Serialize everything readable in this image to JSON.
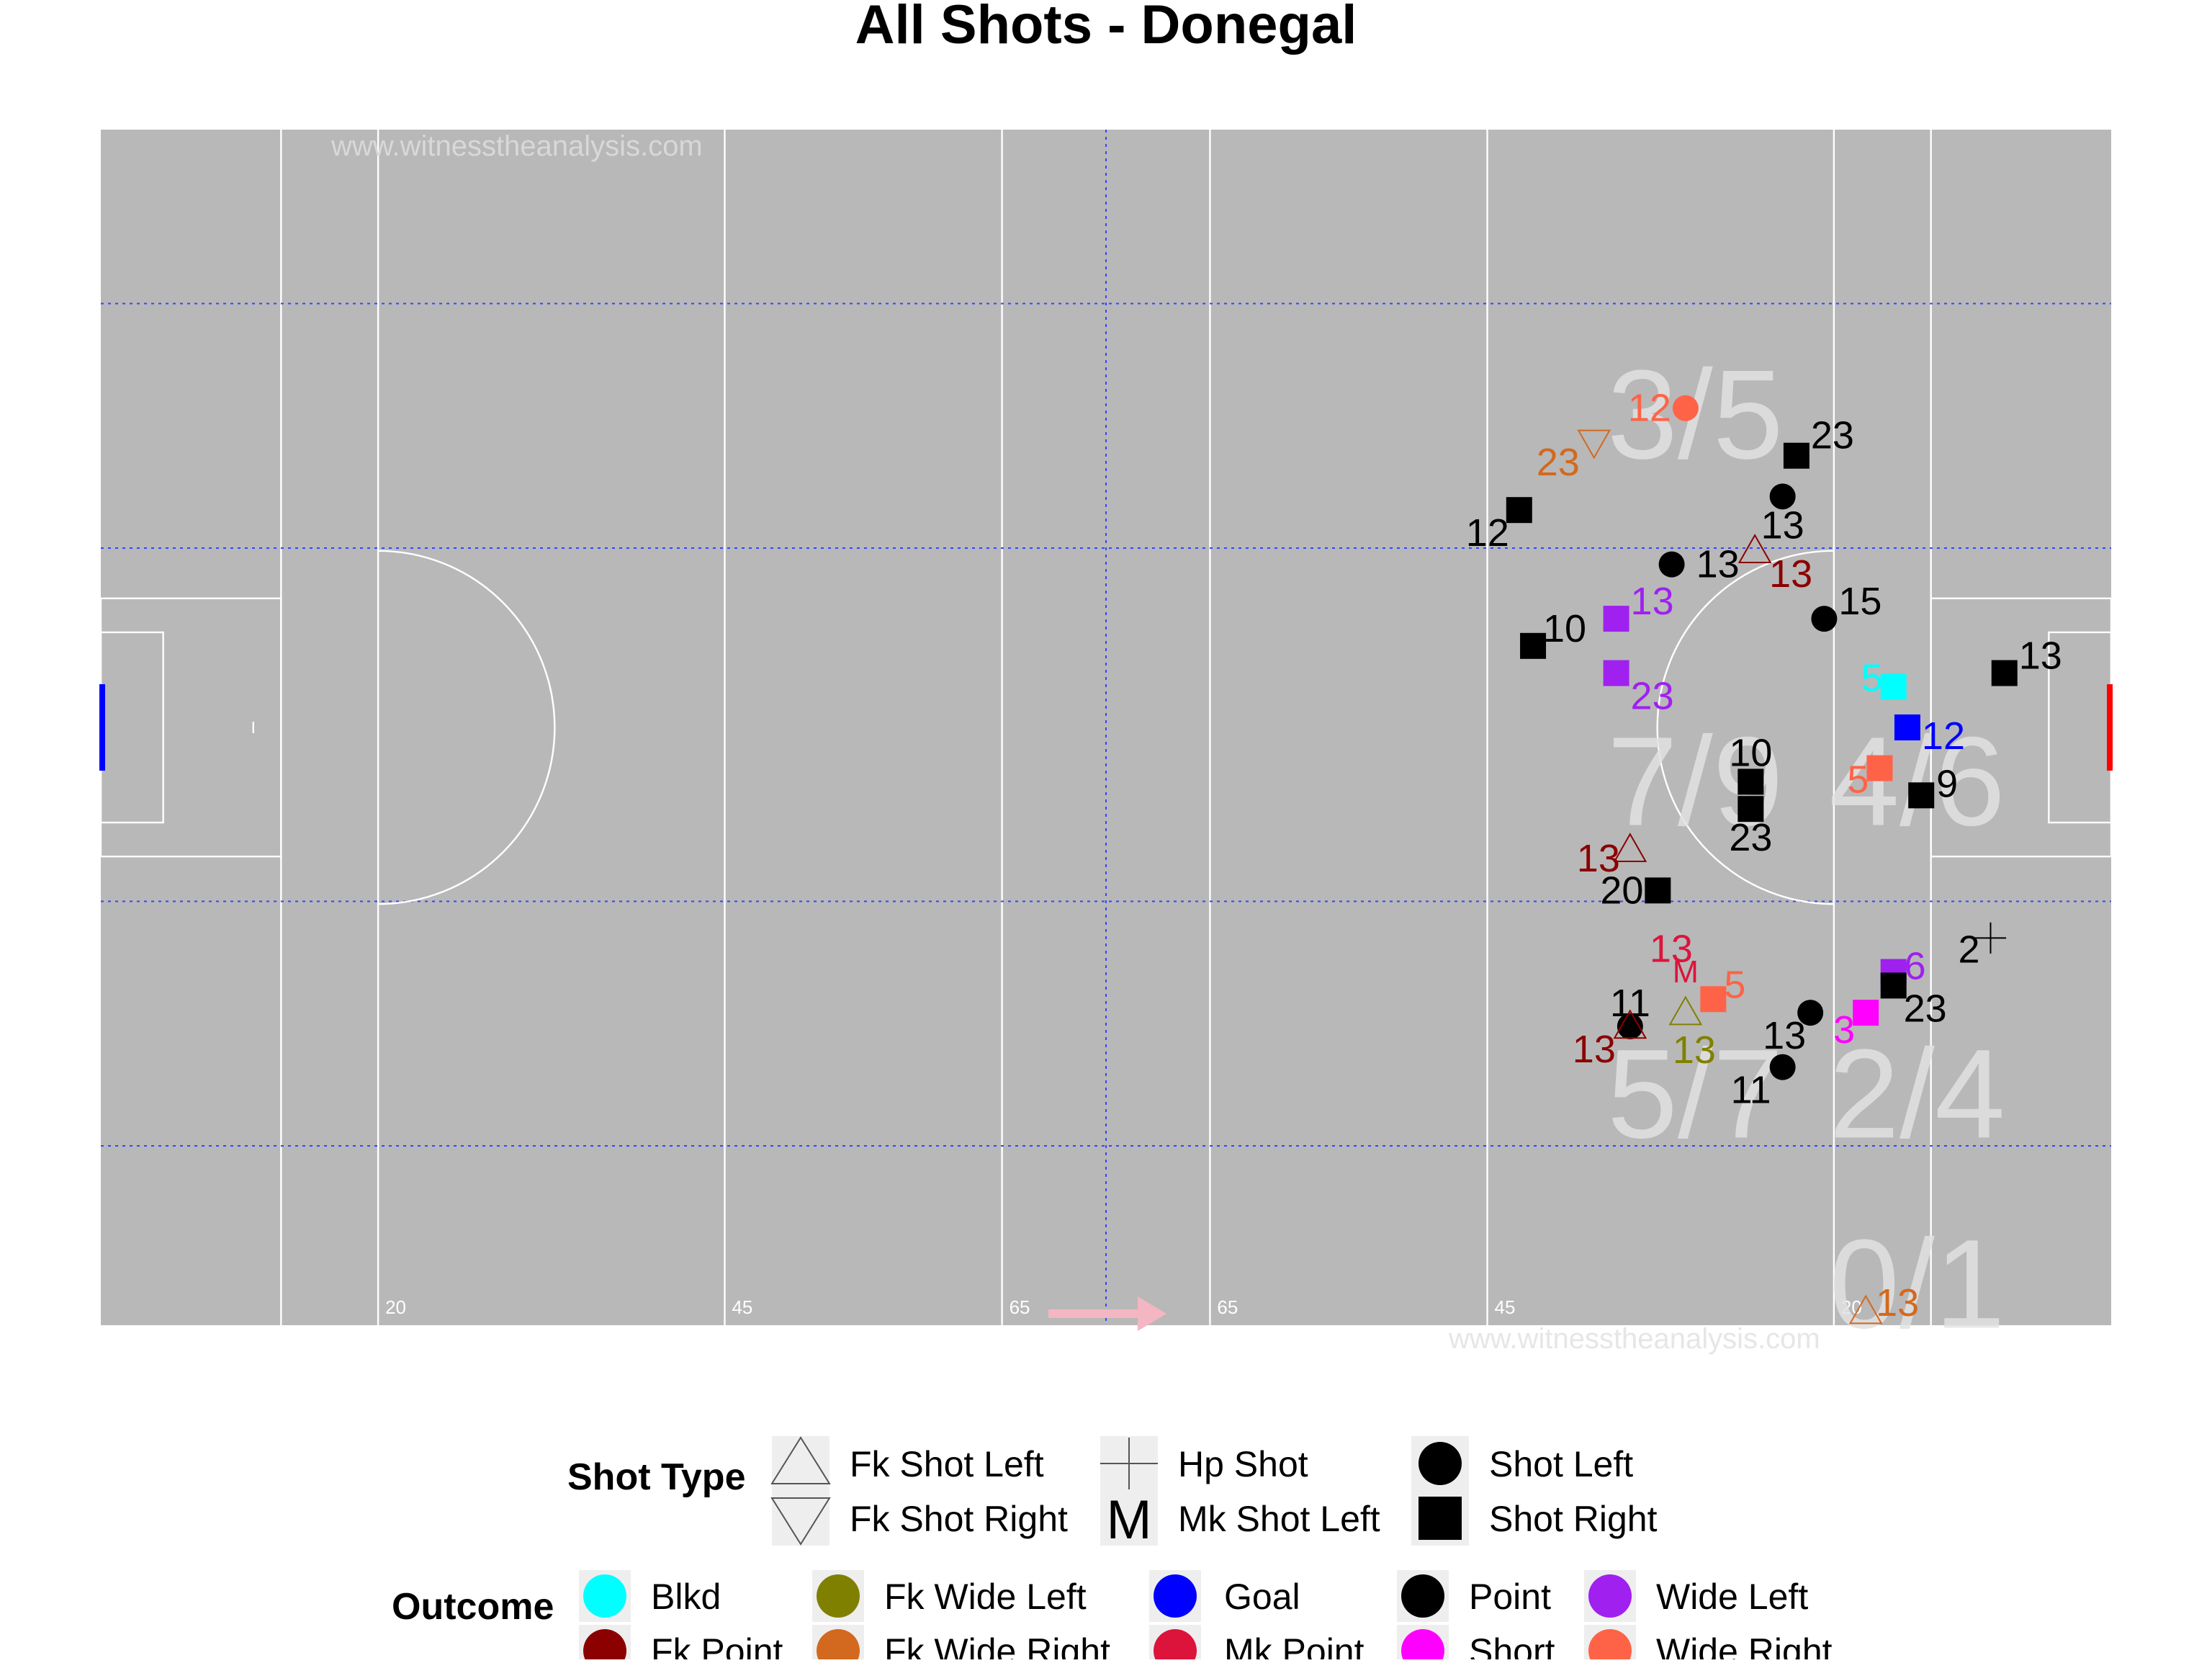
{
  "chart_data": {
    "type": "scatter",
    "title": "All Shots - Donegal",
    "watermark": "www.witnesstheanalysis.com",
    "attack_direction": "right",
    "pitch_line_labels": [
      {
        "label": "20",
        "x": 20
      },
      {
        "label": "45",
        "x": 45
      },
      {
        "label": "65",
        "x": 65
      },
      {
        "label": "65",
        "x": 80
      },
      {
        "label": "45",
        "x": 100
      },
      {
        "label": "20",
        "x": 125
      }
    ],
    "zone_stats": [
      {
        "label": "3/5",
        "x": 115,
        "y": 67
      },
      {
        "label": "7/9",
        "x": 115,
        "y": 40
      },
      {
        "label": "4/6",
        "x": 131,
        "y": 40
      },
      {
        "label": "5/7",
        "x": 115,
        "y": 17
      },
      {
        "label": "2/4",
        "x": 131,
        "y": 17
      },
      {
        "label": "0/1",
        "x": 131,
        "y": 3
      }
    ],
    "legend_shot_type": {
      "title": "Shot Type",
      "items": [
        {
          "label": "Fk Shot Left",
          "shape": "triangle-up"
        },
        {
          "label": "Fk Shot Right",
          "shape": "triangle-down"
        },
        {
          "label": "Hp Shot",
          "shape": "plus"
        },
        {
          "label": "Mk Shot Left",
          "shape": "M"
        },
        {
          "label": "Shot Left",
          "shape": "circle"
        },
        {
          "label": "Shot Right",
          "shape": "square"
        }
      ]
    },
    "legend_outcome": {
      "title": "Outcome",
      "items": [
        {
          "label": "Blkd",
          "color": "#00FFFF"
        },
        {
          "label": "Fk Point",
          "color": "#8B0000"
        },
        {
          "label": "Fk Wide Left",
          "color": "#808000"
        },
        {
          "label": "Fk Wide Right",
          "color": "#D2691E"
        },
        {
          "label": "Goal",
          "color": "#0000FF"
        },
        {
          "label": "Mk Point",
          "color": "#DC143C"
        },
        {
          "label": "Point",
          "color": "#000000"
        },
        {
          "label": "Short",
          "color": "#FF00FF"
        },
        {
          "label": "Wide Left",
          "color": "#A020F0"
        },
        {
          "label": "Wide Right",
          "color": "#FF6347"
        }
      ]
    },
    "x_range": [
      0,
      145
    ],
    "y_range": [
      0,
      88
    ],
    "points": [
      {
        "x": 114.3,
        "y": 67.5,
        "player": "12",
        "shot_type": "Shot Left",
        "outcome": "Wide Right",
        "label_dx": -25,
        "label_dy": 0
      },
      {
        "x": 107.7,
        "y": 65.0,
        "player": "23",
        "shot_type": "Fk Shot Right",
        "outcome": "Fk Wide Right",
        "label_dx": -25,
        "label_dy": 14
      },
      {
        "x": 122.3,
        "y": 64.0,
        "player": "23",
        "shot_type": "Shot Right",
        "outcome": "Point",
        "label_dx": 25,
        "label_dy": -14
      },
      {
        "x": 121.3,
        "y": 61.0,
        "player": "13",
        "shot_type": "Shot Left",
        "outcome": "Point",
        "label_dx": 0,
        "label_dy": 20
      },
      {
        "x": 102.3,
        "y": 60.0,
        "player": "12",
        "shot_type": "Shot Right",
        "outcome": "Point",
        "label_dx": -22,
        "label_dy": 16
      },
      {
        "x": 113.3,
        "y": 56.0,
        "player": "13",
        "shot_type": "Shot Left",
        "outcome": "Point",
        "label_dx": 32,
        "label_dy": 0
      },
      {
        "x": 119.3,
        "y": 57.0,
        "player": "13",
        "shot_type": "Fk Shot Left",
        "outcome": "Fk Point",
        "label_dx": 25,
        "label_dy": 16
      },
      {
        "x": 124.3,
        "y": 52.0,
        "player": "15",
        "shot_type": "Shot Left",
        "outcome": "Point",
        "label_dx": 25,
        "label_dy": -12
      },
      {
        "x": 109.3,
        "y": 52.0,
        "player": "13",
        "shot_type": "Shot Right",
        "outcome": "Wide Left",
        "label_dx": 25,
        "label_dy": -12
      },
      {
        "x": 103.3,
        "y": 50.0,
        "player": "10",
        "shot_type": "Shot Right",
        "outcome": "Point",
        "label_dx": 22,
        "label_dy": -12
      },
      {
        "x": 109.3,
        "y": 48.0,
        "player": "23",
        "shot_type": "Shot Right",
        "outcome": "Wide Left",
        "label_dx": 25,
        "label_dy": 16
      },
      {
        "x": 137.3,
        "y": 48.0,
        "player": "13",
        "shot_type": "Shot Right",
        "outcome": "Point",
        "label_dx": 25,
        "label_dy": -12
      },
      {
        "x": 129.3,
        "y": 47.0,
        "player": "5",
        "shot_type": "Shot Right",
        "outcome": "Blkd",
        "label_dx": -15,
        "label_dy": -6
      },
      {
        "x": 130.3,
        "y": 44.0,
        "player": "12",
        "shot_type": "Shot Right",
        "outcome": "Goal",
        "label_dx": 25,
        "label_dy": 6
      },
      {
        "x": 119.0,
        "y": 40.0,
        "player": "10",
        "shot_type": "Shot Right",
        "outcome": "Point",
        "label_dx": 0,
        "label_dy": -20
      },
      {
        "x": 128.3,
        "y": 41.0,
        "player": "5",
        "shot_type": "Shot Right",
        "outcome": "Wide Right",
        "label_dx": -15,
        "label_dy": 8
      },
      {
        "x": 131.3,
        "y": 39.0,
        "player": "9",
        "shot_type": "Shot Right",
        "outcome": "Point",
        "label_dx": 18,
        "label_dy": -8
      },
      {
        "x": 119.0,
        "y": 38.0,
        "player": "23",
        "shot_type": "Shot Right",
        "outcome": "Point",
        "label_dx": 0,
        "label_dy": 20
      },
      {
        "x": 110.3,
        "y": 35.0,
        "player": "13",
        "shot_type": "Fk Shot Left",
        "outcome": "Fk Point",
        "label_dx": -22,
        "label_dy": 6
      },
      {
        "x": 112.3,
        "y": 32.0,
        "player": "20",
        "shot_type": "Shot Right",
        "outcome": "Point",
        "label_dx": -25,
        "label_dy": 0
      },
      {
        "x": 136.3,
        "y": 28.5,
        "player": "2",
        "shot_type": "Hp Shot",
        "outcome": "Point",
        "label_dx": -15,
        "label_dy": 8
      },
      {
        "x": 114.3,
        "y": 26.0,
        "player": "13",
        "shot_type": "Mk Shot Left",
        "outcome": "Mk Point",
        "label_dx": -10,
        "label_dy": -16
      },
      {
        "x": 129.3,
        "y": 26.0,
        "player": "6",
        "shot_type": "Shot Right",
        "outcome": "Wide Left",
        "label_dx": 15,
        "label_dy": -4
      },
      {
        "x": 129.3,
        "y": 25.0,
        "player": "23",
        "shot_type": "Shot Right",
        "outcome": "Point",
        "label_dx": 22,
        "label_dy": 16
      },
      {
        "x": 116.3,
        "y": 24.0,
        "player": "5",
        "shot_type": "Shot Right",
        "outcome": "Wide Right",
        "label_dx": 15,
        "label_dy": -10
      },
      {
        "x": 114.3,
        "y": 23.0,
        "player": "13",
        "shot_type": "Fk Shot Left",
        "outcome": "Fk Wide Left",
        "label_dx": 6,
        "label_dy": 26
      },
      {
        "x": 123.3,
        "y": 23.0,
        "player": "13",
        "shot_type": "Shot Left",
        "outcome": "Point",
        "label_dx": -18,
        "label_dy": 16
      },
      {
        "x": 127.3,
        "y": 23.0,
        "player": "3",
        "shot_type": "Shot Right",
        "outcome": "Short",
        "label_dx": -15,
        "label_dy": 12
      },
      {
        "x": 110.3,
        "y": 22.0,
        "player": "11",
        "shot_type": "Shot Left",
        "outcome": "Point",
        "label_dx": 0,
        "label_dy": -16
      },
      {
        "x": 110.3,
        "y": 22.0,
        "player": "13",
        "shot_type": "Fk Shot Left",
        "outcome": "Fk Point",
        "label_dx": -25,
        "label_dy": 16
      },
      {
        "x": 121.3,
        "y": 19.0,
        "player": "11",
        "shot_type": "Shot Left",
        "outcome": "Point",
        "label_dx": -22,
        "label_dy": 16
      },
      {
        "x": 127.3,
        "y": 1.0,
        "player": "13",
        "shot_type": "Fk Shot Left",
        "outcome": "Fk Wide Right",
        "label_dx": 22,
        "label_dy": -6
      }
    ]
  }
}
